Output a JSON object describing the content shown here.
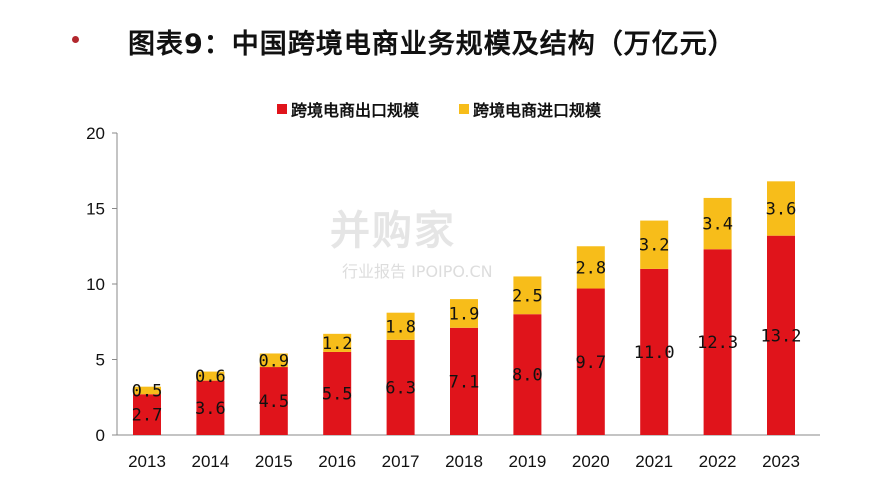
{
  "header": {
    "title": "图表9：中国跨境电商业务规模及结构（万亿元）"
  },
  "watermark": {
    "logo": "并购家",
    "sub": "行业报告 IPOIPO.CN"
  },
  "colors": {
    "export": "#e0141b",
    "import": "#f7bd1a"
  },
  "chart_data": {
    "type": "bar",
    "stacked": true,
    "categories": [
      "2013",
      "2014",
      "2015",
      "2016",
      "2017",
      "2018",
      "2019",
      "2020",
      "2021",
      "2022",
      "2023"
    ],
    "series": [
      {
        "name": "跨境电商出口规模",
        "values": [
          2.7,
          3.6,
          4.5,
          5.5,
          6.3,
          7.1,
          8.0,
          9.7,
          11.0,
          12.3,
          13.2
        ],
        "labels": [
          "2.7",
          "3.6",
          "4.5",
          "5.5",
          "6.3",
          "7.1",
          "8.0",
          "9.7",
          "11.0",
          "12.3",
          "13.2"
        ]
      },
      {
        "name": "跨境电商进口规模",
        "values": [
          0.5,
          0.6,
          0.9,
          1.2,
          1.8,
          1.9,
          2.5,
          2.8,
          3.2,
          3.4,
          3.6
        ],
        "labels": [
          "0.5",
          "0.6",
          "0.9",
          "1.2",
          "1.8",
          "1.9",
          "2.5",
          "2.8",
          "3.2",
          "3.4",
          "3.6"
        ]
      }
    ],
    "yticks": [
      "0",
      "5",
      "10",
      "15",
      "20"
    ],
    "ylim": [
      0,
      20
    ],
    "legend": "top-center",
    "grid": false
  }
}
